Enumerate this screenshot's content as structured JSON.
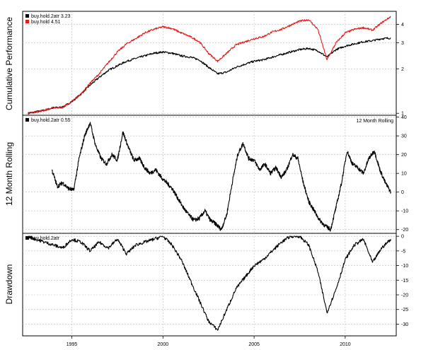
{
  "chart_data": [
    {
      "type": "line",
      "panel": "cumulative",
      "ylabel": "Cumulative Performance",
      "scale": "log",
      "ylim": [
        0.97,
        4.9
      ],
      "xlim": [
        1992.3,
        2012.8
      ],
      "grid": true,
      "legend": "top-left",
      "legend_entries": [
        "buy.hold.2atr 3.23",
        "buy.hold 4.51"
      ],
      "y_ticks": [
        "1",
        "2",
        "3",
        "4"
      ],
      "x_ticks": [
        "1995",
        "2000",
        "2005",
        "2010"
      ],
      "series": [
        {
          "name": "buy.hold.2atr 3.23",
          "color": "#000000",
          "x": [
            1992.6,
            1993.0,
            1993.5,
            1994.0,
            1994.5,
            1995.0,
            1995.5,
            1996.0,
            1996.5,
            1997.0,
            1997.5,
            1998.0,
            1998.5,
            1999.0,
            1999.5,
            2000.0,
            2000.5,
            2001.0,
            2001.5,
            2002.0,
            2002.5,
            2003.0,
            2003.5,
            2004.0,
            2004.5,
            2005.0,
            2005.5,
            2006.0,
            2006.5,
            2007.0,
            2007.5,
            2008.0,
            2008.5,
            2009.0,
            2009.5,
            2010.0,
            2010.5,
            2011.0,
            2011.5,
            2012.0,
            2012.5
          ],
          "y": [
            1.0,
            1.02,
            1.05,
            1.09,
            1.1,
            1.2,
            1.35,
            1.55,
            1.75,
            1.95,
            2.1,
            2.25,
            2.35,
            2.45,
            2.55,
            2.6,
            2.55,
            2.45,
            2.4,
            2.3,
            2.05,
            1.85,
            1.9,
            2.05,
            2.15,
            2.25,
            2.3,
            2.4,
            2.5,
            2.6,
            2.7,
            2.75,
            2.65,
            2.4,
            2.7,
            2.85,
            2.95,
            3.05,
            3.1,
            3.2,
            3.23
          ]
        },
        {
          "name": "buy.hold 4.51",
          "color": "#e0201e",
          "x": [
            1992.6,
            1993.0,
            1993.5,
            1994.0,
            1994.5,
            1995.0,
            1995.5,
            1996.0,
            1996.5,
            1997.0,
            1997.5,
            1998.0,
            1998.5,
            1999.0,
            1999.5,
            2000.0,
            2000.5,
            2001.0,
            2001.5,
            2002.0,
            2002.5,
            2003.0,
            2003.5,
            2004.0,
            2004.5,
            2005.0,
            2005.5,
            2006.0,
            2006.5,
            2007.0,
            2007.5,
            2008.0,
            2008.5,
            2009.0,
            2009.5,
            2010.0,
            2010.5,
            2011.0,
            2011.5,
            2012.0,
            2012.5
          ],
          "y": [
            1.0,
            1.02,
            1.05,
            1.09,
            1.1,
            1.2,
            1.35,
            1.6,
            1.85,
            2.2,
            2.6,
            2.95,
            3.2,
            3.5,
            3.7,
            3.85,
            3.75,
            3.5,
            3.3,
            3.05,
            2.55,
            2.25,
            2.55,
            2.9,
            3.05,
            3.2,
            3.3,
            3.55,
            3.7,
            3.95,
            4.2,
            4.3,
            3.7,
            2.3,
            3.0,
            3.5,
            3.7,
            3.8,
            3.65,
            4.1,
            4.51
          ]
        }
      ]
    },
    {
      "type": "line",
      "panel": "rolling",
      "ylabel": "12 Month Rolling",
      "annotation": "12 Month Rolling",
      "ylim": [
        -22,
        41
      ],
      "xlim": [
        1992.3,
        2012.8
      ],
      "grid": true,
      "legend": "top-left",
      "legend_entries": [
        "buy.hold.2atr 0.55"
      ],
      "y_ticks": [
        "-20",
        "-10",
        "0",
        "10",
        "20",
        "30",
        "40"
      ],
      "series": [
        {
          "name": "buy.hold.2atr 0.55",
          "color": "#000000",
          "x": [
            1993.9,
            1994.2,
            1994.5,
            1994.8,
            1995.1,
            1995.4,
            1995.7,
            1996.0,
            1996.3,
            1996.6,
            1996.9,
            1997.2,
            1997.5,
            1997.8,
            1998.1,
            1998.4,
            1998.7,
            1999.0,
            1999.3,
            1999.6,
            1999.9,
            2000.2,
            2000.5,
            2000.8,
            2001.1,
            2001.4,
            2001.7,
            2002.0,
            2002.3,
            2002.6,
            2002.9,
            2003.2,
            2003.5,
            2003.8,
            2004.1,
            2004.4,
            2004.7,
            2005.0,
            2005.3,
            2005.6,
            2005.9,
            2006.2,
            2006.5,
            2006.8,
            2007.1,
            2007.4,
            2007.7,
            2008.0,
            2008.3,
            2008.6,
            2008.9,
            2009.2,
            2009.5,
            2009.8,
            2010.1,
            2010.4,
            2010.7,
            2011.0,
            2011.3,
            2011.6,
            2011.9,
            2012.2,
            2012.5
          ],
          "y": [
            12,
            3,
            5,
            2,
            1,
            18,
            30,
            37,
            25,
            18,
            15,
            20,
            17,
            32,
            24,
            17,
            18,
            13,
            10,
            12,
            8,
            5,
            2,
            -3,
            -8,
            -12,
            -15,
            -14,
            -10,
            -15,
            -17,
            -20,
            -12,
            5,
            20,
            26,
            18,
            17,
            12,
            15,
            10,
            13,
            8,
            12,
            20,
            18,
            5,
            -5,
            -10,
            -15,
            -18,
            -20,
            -8,
            5,
            22,
            15,
            13,
            10,
            18,
            22,
            12,
            5,
            0
          ]
        }
      ]
    },
    {
      "type": "line",
      "panel": "drawdown",
      "ylabel": "Drawdown",
      "ylim": [
        -34,
        1
      ],
      "xlim": [
        1992.3,
        2012.8
      ],
      "grid": true,
      "legend": "top-left",
      "legend_entries": [
        "buy.hold.2atr"
      ],
      "y_ticks": [
        "-30",
        "-25",
        "-20",
        "-15",
        "-10",
        "-5",
        "0"
      ],
      "series": [
        {
          "name": "buy.hold.2atr",
          "color": "#000000",
          "x": [
            1992.6,
            1993.0,
            1993.5,
            1994.0,
            1994.5,
            1995.0,
            1995.5,
            1996.0,
            1996.5,
            1997.0,
            1997.5,
            1998.0,
            1998.5,
            1999.0,
            1999.5,
            2000.0,
            2000.5,
            2001.0,
            2001.5,
            2002.0,
            2002.5,
            2003.0,
            2003.5,
            2004.0,
            2004.5,
            2005.0,
            2005.5,
            2006.0,
            2006.5,
            2007.0,
            2007.5,
            2008.0,
            2008.5,
            2009.0,
            2009.5,
            2010.0,
            2010.5,
            2011.0,
            2011.5,
            2012.0,
            2012.5
          ],
          "y": [
            0,
            -1,
            -2,
            -3,
            -4,
            -1,
            -2,
            -5,
            -2,
            -4,
            -1,
            -6,
            -3,
            -2,
            -1,
            0,
            -3,
            -8,
            -15,
            -22,
            -29,
            -32,
            -25,
            -18,
            -14,
            -10,
            -8,
            -5,
            -2,
            0,
            0,
            -3,
            -12,
            -26,
            -18,
            -8,
            -3,
            -1,
            -9,
            -4,
            -1
          ]
        }
      ]
    }
  ]
}
